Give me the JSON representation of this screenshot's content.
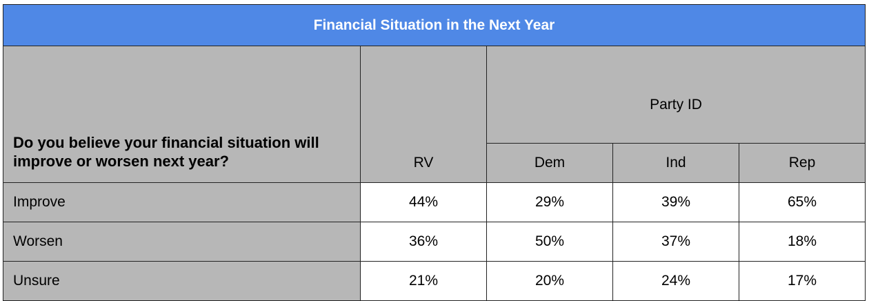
{
  "chart_data": {
    "type": "table",
    "title": "Financial Situation in the Next Year",
    "question": "Do you believe your financial situation will improve or worsen next year?",
    "group_header": "Party ID",
    "columns": [
      "RV",
      "Dem",
      "Ind",
      "Rep"
    ],
    "rows": [
      {
        "label": "Improve",
        "values": [
          "44%",
          "29%",
          "39%",
          "65%"
        ]
      },
      {
        "label": "Worsen",
        "values": [
          "36%",
          "50%",
          "37%",
          "18%"
        ]
      },
      {
        "label": "Unsure",
        "values": [
          "21%",
          "20%",
          "24%",
          "17%"
        ]
      }
    ]
  },
  "colors": {
    "title_background": "#4f88e6",
    "header_background": "#b7b7b7",
    "cell_background": "#ffffff",
    "border": "#222222"
  }
}
